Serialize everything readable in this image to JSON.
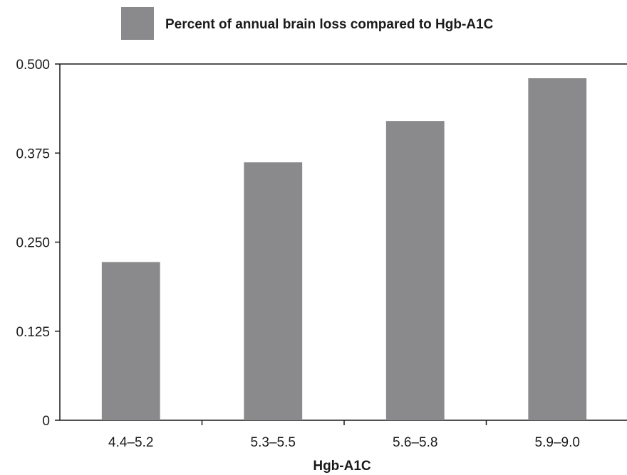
{
  "chart_data": {
    "type": "bar",
    "categories": [
      "4.4–5.2",
      "5.3–5.5",
      "5.6–5.8",
      "5.9–9.0"
    ],
    "series": [
      {
        "name": "Percent of annual brain loss compared to Hgb-A1C",
        "values": [
          0.222,
          0.362,
          0.42,
          0.48
        ]
      }
    ],
    "xlabel": "Hgb-A1C",
    "ylabel": "",
    "ylim": [
      0,
      0.5
    ],
    "yticks": [
      0,
      0.125,
      0.25,
      0.375,
      0.5
    ],
    "ytick_labels": [
      "0",
      "0.125",
      "0.250",
      "0.375",
      "0.500"
    ],
    "grid": false,
    "legend_position": "top",
    "colors": {
      "bar": "#8a8a8c",
      "axis": "#1a1a1a"
    }
  }
}
